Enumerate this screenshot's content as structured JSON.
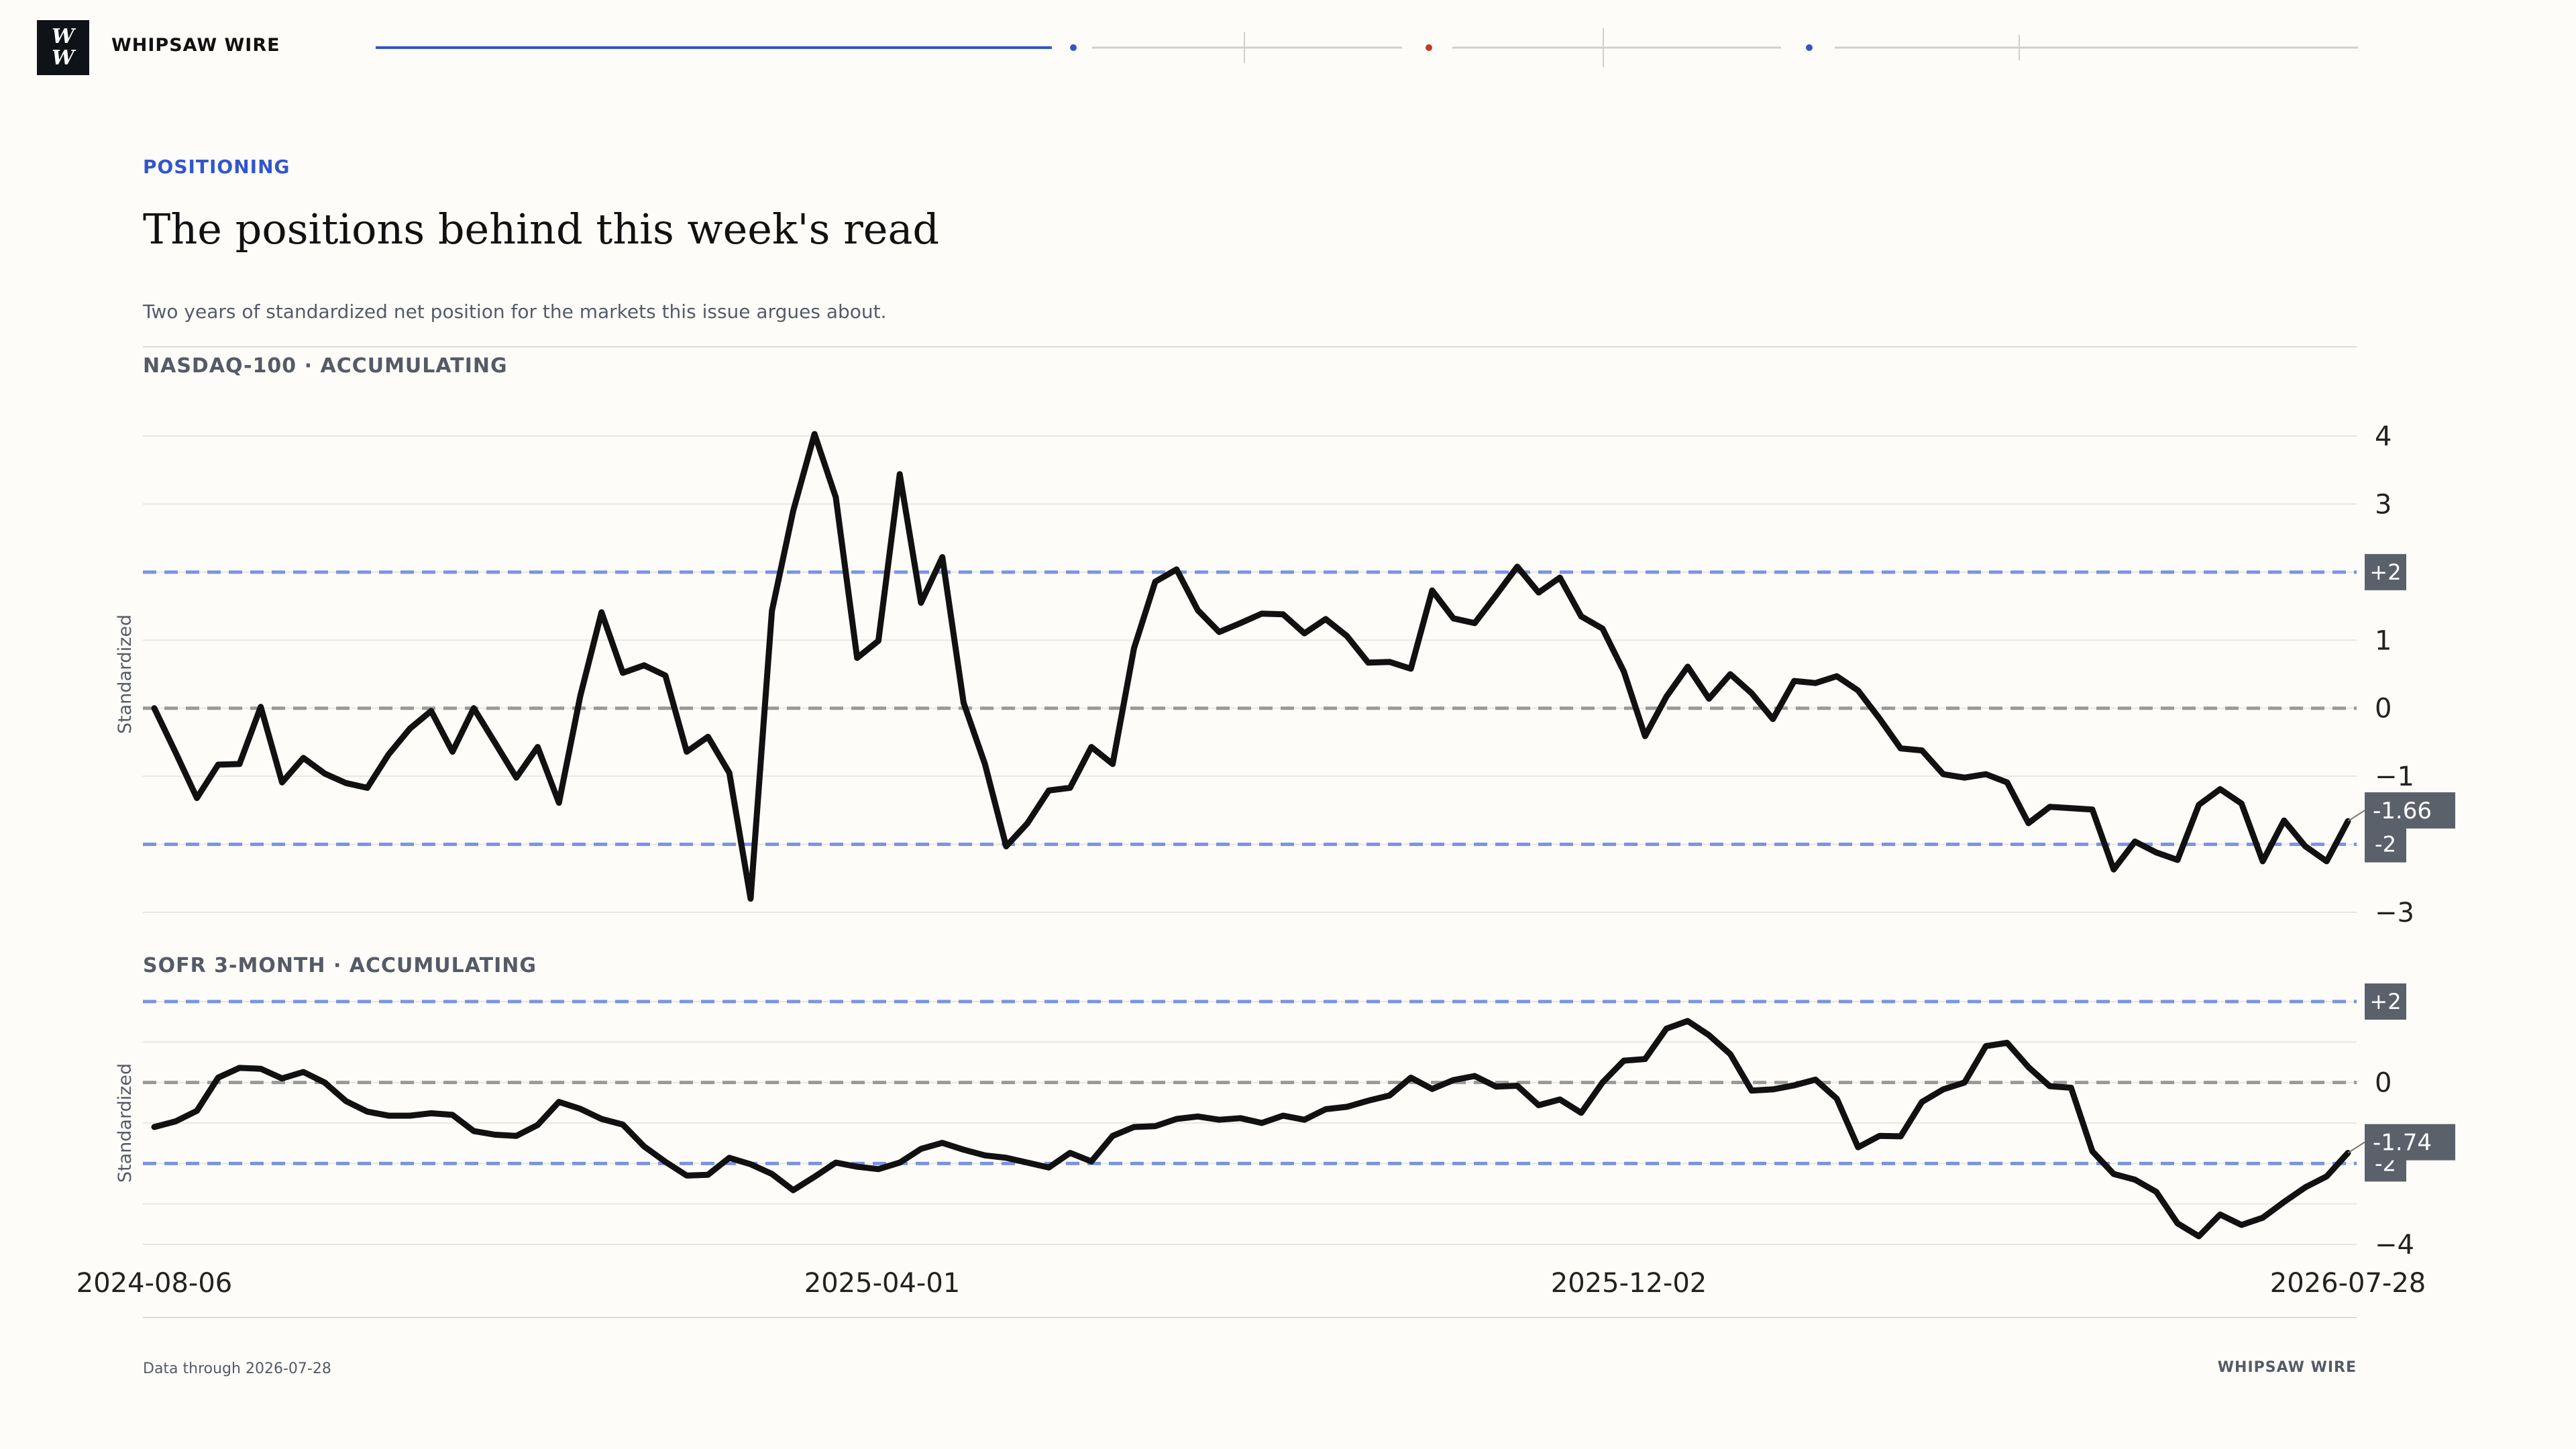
{
  "header": {
    "logo_line1": "W",
    "logo_line2": "W",
    "brand": "WHIPSAW WIRE"
  },
  "article": {
    "kicker": "POSITIONING",
    "title": "The positions behind this week's read",
    "dek": "Two years of standardized net position for the markets this issue argues about."
  },
  "footer": {
    "note": "Data through 2026-07-28",
    "brand": "WHIPSAW WIRE"
  },
  "colors": {
    "accent": "#3355cc",
    "line": "#111111",
    "band": "#7b93e0",
    "zero": "#999999",
    "badge": "#5b616b",
    "alert_dot": "#c0392b"
  },
  "chart_data": [
    {
      "type": "line",
      "title": "NASDAQ-100 · ACCUMULATING",
      "ylabel": "Standardized",
      "ylim": [
        -3,
        4
      ],
      "yticks": [
        4,
        3,
        1,
        0,
        -1,
        -3
      ],
      "ytick_labels": [
        "4",
        "3",
        "1",
        "0",
        "−1",
        "−3"
      ],
      "reference_lines": [
        {
          "value": 2,
          "label": "+2",
          "style": "band"
        },
        {
          "value": 0,
          "label": "",
          "style": "zero"
        },
        {
          "value": -2,
          "label": "-2",
          "style": "band"
        }
      ],
      "last_value_label": "-1.66",
      "x_start": "2024-08-06",
      "x_end": "2026-07-28",
      "values": [
        0.0,
        -0.65,
        -1.32,
        -0.83,
        -0.82,
        0.02,
        -1.09,
        -0.73,
        -0.96,
        -1.1,
        -1.17,
        -0.68,
        -0.3,
        -0.04,
        -0.64,
        0.0,
        -0.51,
        -1.02,
        -0.57,
        -1.39,
        0.18,
        1.41,
        0.52,
        0.63,
        0.48,
        -0.64,
        -0.42,
        -0.95,
        -2.8,
        1.43,
        2.9,
        4.03,
        3.1,
        0.74,
        0.99,
        3.44,
        1.55,
        2.22,
        0.08,
        -0.82,
        -2.03,
        -1.69,
        -1.21,
        -1.17,
        -0.57,
        -0.82,
        0.88,
        1.86,
        2.04,
        1.44,
        1.12,
        1.25,
        1.39,
        1.38,
        1.1,
        1.31,
        1.06,
        0.67,
        0.68,
        0.58,
        1.73,
        1.32,
        1.25,
        1.66,
        2.08,
        1.7,
        1.92,
        1.35,
        1.17,
        0.54,
        -0.41,
        0.17,
        0.61,
        0.14,
        0.5,
        0.22,
        -0.16,
        0.4,
        0.37,
        0.47,
        0.26,
        -0.15,
        -0.59,
        -0.62,
        -0.97,
        -1.02,
        -0.97,
        -1.09,
        -1.69,
        -1.45,
        -1.47,
        -1.49,
        -2.37,
        -1.96,
        -2.12,
        -2.23,
        -1.42,
        -1.19,
        -1.4,
        -2.25,
        -1.65,
        -2.03,
        -2.25,
        -1.66
      ]
    },
    {
      "type": "line",
      "title": "SOFR 3-MONTH · ACCUMULATING",
      "ylabel": "Standardized",
      "ylim": [
        -4,
        2
      ],
      "yticks": [
        0,
        -4
      ],
      "ytick_labels": [
        "0",
        "−4"
      ],
      "reference_lines": [
        {
          "value": 2,
          "label": "+2",
          "style": "band"
        },
        {
          "value": 0,
          "label": "",
          "style": "zero"
        },
        {
          "value": -2,
          "label": "-2",
          "style": "band"
        }
      ],
      "last_value_label": "-1.74",
      "x_start": "2024-08-06",
      "x_end": "2026-07-28",
      "xticks": [
        "2024-08-06",
        "2025-04-01",
        "2025-12-02",
        "2026-07-28"
      ],
      "values": [
        -1.1,
        -0.96,
        -0.7,
        0.12,
        0.36,
        0.34,
        0.1,
        0.26,
        0.0,
        -0.46,
        -0.72,
        -0.82,
        -0.82,
        -0.76,
        -0.8,
        -1.2,
        -1.29,
        -1.32,
        -1.05,
        -0.48,
        -0.65,
        -0.9,
        -1.04,
        -1.58,
        -1.96,
        -2.3,
        -2.28,
        -1.86,
        -2.02,
        -2.26,
        -2.66,
        -2.33,
        -1.98,
        -2.08,
        -2.14,
        -1.98,
        -1.64,
        -1.49,
        -1.66,
        -1.8,
        -1.86,
        -1.98,
        -2.1,
        -1.74,
        -1.95,
        -1.32,
        -1.1,
        -1.08,
        -0.9,
        -0.84,
        -0.92,
        -0.88,
        -1.0,
        -0.82,
        -0.92,
        -0.66,
        -0.6,
        -0.45,
        -0.32,
        0.12,
        -0.16,
        0.06,
        0.16,
        -0.1,
        -0.08,
        -0.56,
        -0.42,
        -0.75,
        0.0,
        0.54,
        0.58,
        1.33,
        1.52,
        1.17,
        0.7,
        -0.2,
        -0.17,
        -0.07,
        0.07,
        -0.4,
        -1.6,
        -1.32,
        -1.33,
        -0.48,
        -0.17,
        0.0,
        0.9,
        0.98,
        0.38,
        -0.09,
        -0.13,
        -1.7,
        -2.26,
        -2.4,
        -2.7,
        -3.48,
        -3.8,
        -3.26,
        -3.52,
        -3.34,
        -2.95,
        -2.59,
        -2.32,
        -1.74
      ]
    }
  ]
}
